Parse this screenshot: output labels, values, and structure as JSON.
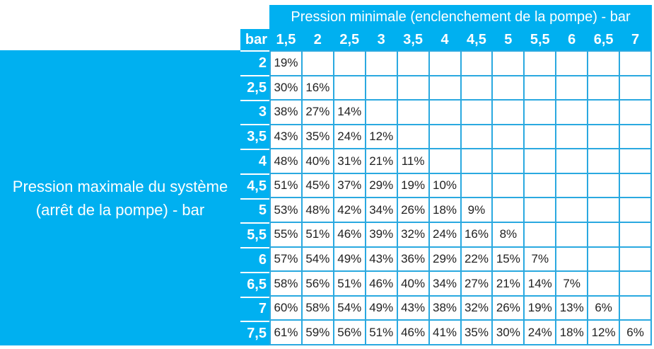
{
  "colors": {
    "fill": "#00b0f0",
    "grid_line": "#2aa9e0",
    "header_text": "#ffffff",
    "cell_text": "#222222"
  },
  "table": {
    "top_header": "Pression minimale (enclenchement de la pompe) - bar",
    "corner_label": "bar",
    "left_header_line1": "Pression maximale du système",
    "left_header_line2": "(arrêt de la pompe) - bar",
    "columns": [
      "1,5",
      "2",
      "2,5",
      "3",
      "3,5",
      "4",
      "4,5",
      "5",
      "5,5",
      "6",
      "6,5",
      "7"
    ],
    "rows": [
      {
        "label": "2",
        "values": [
          "19%"
        ]
      },
      {
        "label": "2,5",
        "values": [
          "30%",
          "16%"
        ]
      },
      {
        "label": "3",
        "values": [
          "38%",
          "27%",
          "14%"
        ]
      },
      {
        "label": "3,5",
        "values": [
          "43%",
          "35%",
          "24%",
          "12%"
        ]
      },
      {
        "label": "4",
        "values": [
          "48%",
          "40%",
          "31%",
          "21%",
          "11%"
        ]
      },
      {
        "label": "4,5",
        "values": [
          "51%",
          "45%",
          "37%",
          "29%",
          "19%",
          "10%"
        ]
      },
      {
        "label": "5",
        "values": [
          "53%",
          "48%",
          "42%",
          "34%",
          "26%",
          "18%",
          "9%"
        ]
      },
      {
        "label": "5,5",
        "values": [
          "55%",
          "51%",
          "46%",
          "39%",
          "32%",
          "24%",
          "16%",
          "8%"
        ]
      },
      {
        "label": "6",
        "values": [
          "57%",
          "54%",
          "49%",
          "43%",
          "36%",
          "29%",
          "22%",
          "15%",
          "7%"
        ]
      },
      {
        "label": "6,5",
        "values": [
          "58%",
          "56%",
          "51%",
          "46%",
          "40%",
          "34%",
          "27%",
          "21%",
          "14%",
          "7%"
        ]
      },
      {
        "label": "7",
        "values": [
          "60%",
          "58%",
          "54%",
          "49%",
          "43%",
          "38%",
          "32%",
          "26%",
          "19%",
          "13%",
          "6%"
        ]
      },
      {
        "label": "7,5",
        "values": [
          "61%",
          "59%",
          "56%",
          "51%",
          "46%",
          "41%",
          "35%",
          "30%",
          "24%",
          "18%",
          "12%",
          "6%"
        ]
      }
    ]
  },
  "chart_data": {
    "type": "table",
    "title": "",
    "column_axis_label": "Pression minimale (enclenchement de la pompe) - bar",
    "row_axis_label": "Pression maximale du système (arrêt de la pompe) - bar",
    "unit": "%",
    "columns": [
      1.5,
      2,
      2.5,
      3,
      3.5,
      4,
      4.5,
      5,
      5.5,
      6,
      6.5,
      7
    ],
    "rows": [
      2,
      2.5,
      3,
      3.5,
      4,
      4.5,
      5,
      5.5,
      6,
      6.5,
      7,
      7.5
    ],
    "values_percent": [
      [
        19
      ],
      [
        30,
        16
      ],
      [
        38,
        27,
        14
      ],
      [
        43,
        35,
        24,
        12
      ],
      [
        48,
        40,
        31,
        21,
        11
      ],
      [
        51,
        45,
        37,
        29,
        19,
        10
      ],
      [
        53,
        48,
        42,
        34,
        26,
        18,
        9
      ],
      [
        55,
        51,
        46,
        39,
        32,
        24,
        16,
        8
      ],
      [
        57,
        54,
        49,
        43,
        36,
        29,
        22,
        15,
        7
      ],
      [
        58,
        56,
        51,
        46,
        40,
        34,
        27,
        21,
        14,
        7
      ],
      [
        60,
        58,
        54,
        49,
        43,
        38,
        32,
        26,
        19,
        13,
        6
      ],
      [
        61,
        59,
        56,
        51,
        46,
        41,
        35,
        30,
        24,
        18,
        12,
        6
      ]
    ]
  }
}
